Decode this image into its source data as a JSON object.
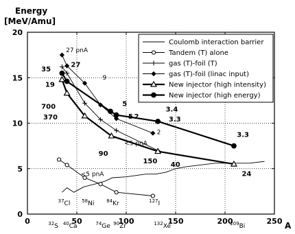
{
  "chart_data": {
    "type": "line",
    "title": "",
    "ylabel_line1": "Energy",
    "ylabel_line2": "[MeV/Amu]",
    "xlabel": "A",
    "xlim": [
      0,
      250
    ],
    "ylim": [
      0,
      20
    ],
    "x_ticks": [
      "0",
      "50",
      "100",
      "150",
      "200",
      "250"
    ],
    "y_ticks": [
      "0",
      "5",
      "10",
      "15",
      "20"
    ],
    "x_tick_values": [
      0,
      50,
      100,
      150,
      200,
      250
    ],
    "y_tick_values": [
      0,
      5,
      10,
      15,
      20
    ],
    "grid": "dotted",
    "legend_position": "top-right",
    "series": [
      {
        "name": "Coulomb interaction barrier",
        "style": "thin",
        "marker": "none",
        "points": [
          [
            35,
            2.4
          ],
          [
            40,
            2.9
          ],
          [
            47,
            2.4
          ],
          [
            57,
            3.0
          ],
          [
            68,
            3.3
          ],
          [
            78,
            3.6
          ],
          [
            86,
            4.0
          ],
          [
            100,
            4.1
          ],
          [
            120,
            4.4
          ],
          [
            130,
            4.4
          ],
          [
            140,
            4.6
          ],
          [
            150,
            5.0
          ],
          [
            160,
            5.2
          ],
          [
            175,
            5.4
          ],
          [
            190,
            5.6
          ],
          [
            209,
            5.6
          ],
          [
            225,
            5.6
          ],
          [
            240,
            5.8
          ]
        ]
      },
      {
        "name": "Tandem (T) alone",
        "style": "thin",
        "marker": "circle-open",
        "points": [
          [
            32,
            6.0
          ],
          [
            40,
            5.4
          ],
          [
            58,
            4.0
          ],
          [
            74,
            3.3
          ],
          [
            90,
            2.4
          ],
          [
            127,
            2.0
          ]
        ]
      },
      {
        "name": "gas (T)-foil (T)",
        "style": "thin",
        "marker": "plus",
        "points": [
          [
            35,
            16.2
          ],
          [
            40,
            15.5
          ],
          [
            58,
            12.2
          ],
          [
            74,
            10.4
          ],
          [
            90,
            9.2
          ],
          [
            132,
            7.0
          ]
        ]
      },
      {
        "name": "gas (T)-foil (linac input)",
        "style": "thin",
        "marker": "diamond-filled",
        "points": [
          [
            35,
            17.5
          ],
          [
            40,
            16.3
          ],
          [
            58,
            14.4
          ],
          [
            74,
            12.0
          ],
          [
            90,
            10.5
          ],
          [
            127,
            8.9
          ]
        ]
      },
      {
        "name": "New injector (high intensity)",
        "style": "thick",
        "marker": "triangle-open",
        "points": [
          [
            35,
            14.8
          ],
          [
            40,
            13.3
          ],
          [
            58,
            10.8
          ],
          [
            85,
            8.6
          ],
          [
            132,
            6.9
          ],
          [
            209,
            5.5
          ]
        ]
      },
      {
        "name": "New injector (high energy)",
        "style": "thick",
        "marker": "circle-filled",
        "points": [
          [
            35,
            15.5
          ],
          [
            40,
            14.6
          ],
          [
            84,
            11.3
          ],
          [
            90,
            10.9
          ],
          [
            132,
            10.2
          ],
          [
            209,
            7.5
          ]
        ]
      }
    ],
    "annotations": [
      {
        "text": "27 pnA",
        "x": 39,
        "y": 17.8,
        "size": "sm"
      },
      {
        "text": "27",
        "x": 44,
        "y": 16.2,
        "size": "md"
      },
      {
        "text": "35",
        "x": 14,
        "y": 15.7,
        "size": "md"
      },
      {
        "text": "9",
        "x": 76,
        "y": 14.8,
        "size": "sm"
      },
      {
        "text": "19",
        "x": 18,
        "y": 14.0,
        "size": "md"
      },
      {
        "text": "700",
        "x": 14,
        "y": 11.6,
        "size": "md"
      },
      {
        "text": "370",
        "x": 16,
        "y": 10.4,
        "size": "md"
      },
      {
        "text": "5",
        "x": 96,
        "y": 11.9,
        "size": "md"
      },
      {
        "text": "5",
        "x": 102,
        "y": 10.5,
        "size": "md"
      },
      {
        "text": "2",
        "x": 108,
        "y": 10.5,
        "size": "md"
      },
      {
        "text": "3.4",
        "x": 140,
        "y": 11.3,
        "size": "md"
      },
      {
        "text": "3.3",
        "x": 143,
        "y": 10.2,
        "size": "md"
      },
      {
        "text": "2",
        "x": 131,
        "y": 8.8,
        "size": "sm"
      },
      {
        "text": "<5 pnA",
        "x": 98,
        "y": 7.6,
        "size": "sm"
      },
      {
        "text": "90",
        "x": 72,
        "y": 6.4,
        "size": "md"
      },
      {
        "text": "150",
        "x": 117,
        "y": 5.6,
        "size": "md"
      },
      {
        "text": "40",
        "x": 145,
        "y": 5.2,
        "size": "md"
      },
      {
        "text": "3.3",
        "x": 212,
        "y": 8.5,
        "size": "md"
      },
      {
        "text": "24",
        "x": 217,
        "y": 4.2,
        "size": "md"
      },
      {
        "text": "<5 pnA",
        "x": 54,
        "y": 4.2,
        "size": "sm"
      }
    ],
    "elements": [
      {
        "mass": "37",
        "symbol": "Cl",
        "row": "upper",
        "x": 31
      },
      {
        "mass": "58",
        "symbol": "Ni",
        "row": "upper",
        "x": 55
      },
      {
        "mass": "84",
        "symbol": "Kr",
        "row": "upper",
        "x": 80
      },
      {
        "mass": "127",
        "symbol": "I",
        "row": "upper",
        "x": 123
      },
      {
        "mass": "32",
        "symbol": "S",
        "row": "lower",
        "x": 21
      },
      {
        "mass": "40",
        "symbol": "Ca",
        "row": "lower",
        "x": 36
      },
      {
        "mass": "74",
        "symbol": "Ge",
        "row": "lower",
        "x": 69
      },
      {
        "mass": "90",
        "symbol": "Zr",
        "row": "lower",
        "x": 87
      },
      {
        "mass": "132",
        "symbol": "Xe",
        "row": "lower",
        "x": 128
      },
      {
        "mass": "209",
        "symbol": "Bi",
        "row": "lower",
        "x": 205
      }
    ],
    "colors": {
      "axis": "#000000",
      "grid": "#000000",
      "line": "#000000",
      "background": "#ffffff"
    }
  }
}
